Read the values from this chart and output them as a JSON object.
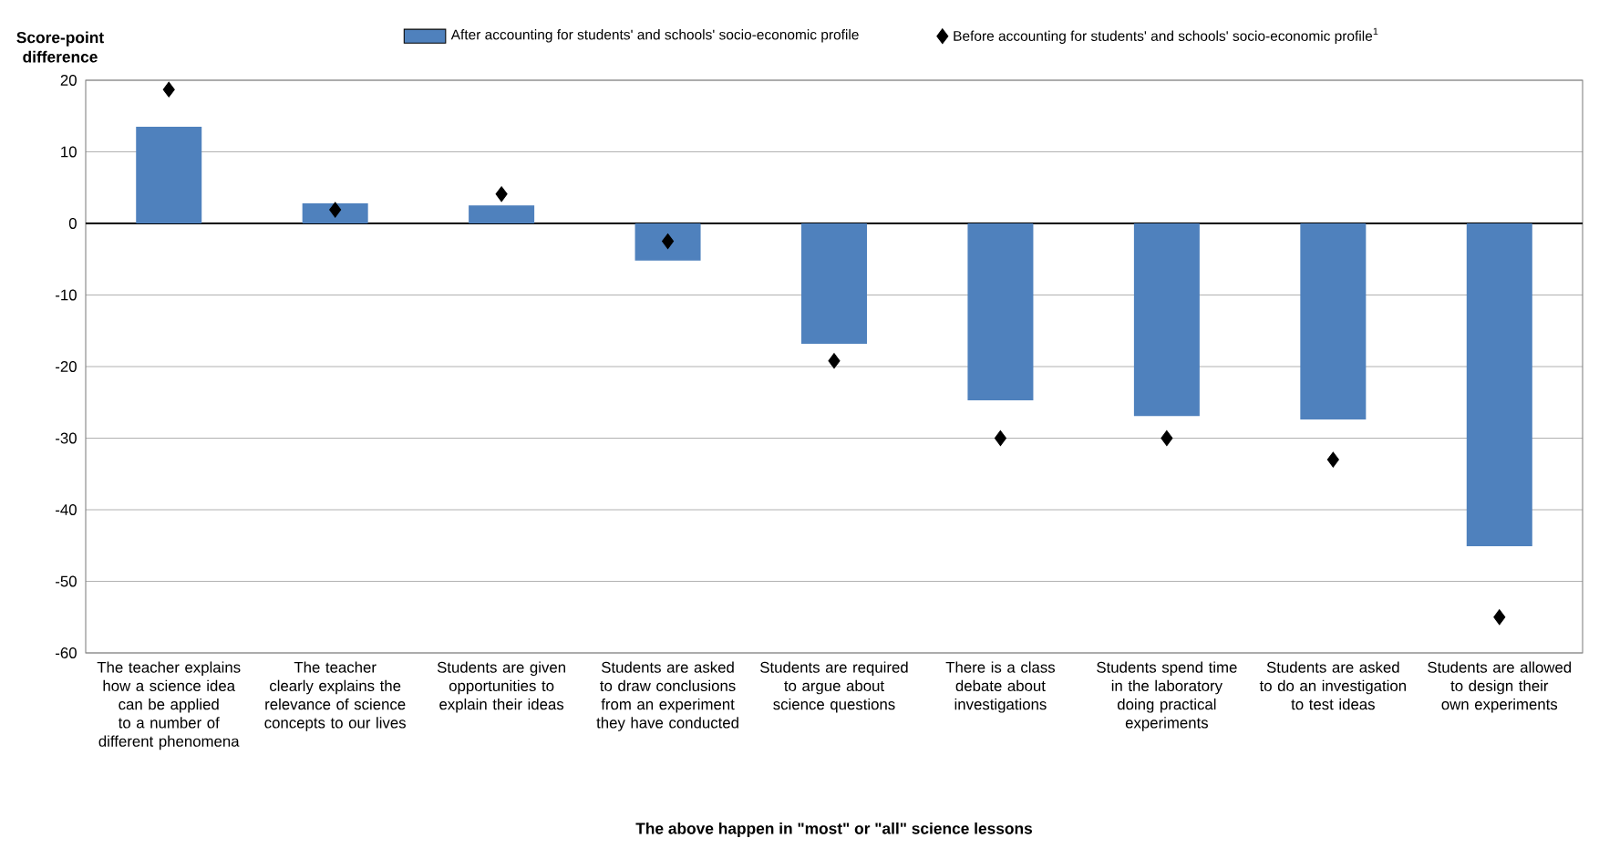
{
  "chart_data": {
    "type": "bar",
    "xlabel": "The above happen in \"most\" or \"all\" science lessons",
    "ylabel": "Score-point difference",
    "categories": [
      "The teacher explains how a science idea can be applied to a number of different phenomena",
      "The teacher clearly explains the relevance of science concepts to our lives",
      "Students are given opportunities to explain their ideas",
      "Students are asked to draw conclusions from an experiment they have conducted",
      "Students are required to argue about science questions",
      "There is a class debate about investigations",
      "Students spend time in the laboratory doing practical experiments",
      "Students are asked to do an investigation to test ideas",
      "Students are allowed to design their own experiments"
    ],
    "series": [
      {
        "name": "After accounting for students' and schools' socio-economic profile",
        "color": "#4f81bd",
        "values": [
          13.5,
          2.8,
          2.5,
          -5.2,
          -16.8,
          -24.7,
          -26.9,
          -27.4,
          -45.1
        ]
      },
      {
        "name": "Before accounting for students' and schools' socio-economic profile$^{1}$",
        "type": "scatter",
        "marker": "diamond",
        "color": "#000000",
        "values": [
          18.7,
          1.9,
          4.1,
          -2.5,
          -19.2,
          -30,
          -30,
          -33,
          -55
        ]
      }
    ],
    "ylim": [
      -60,
      20
    ],
    "yticks": [
      -60,
      -50,
      -40,
      -30,
      -20,
      -10,
      0,
      10,
      20
    ],
    "grid": "y",
    "legend": "top"
  }
}
